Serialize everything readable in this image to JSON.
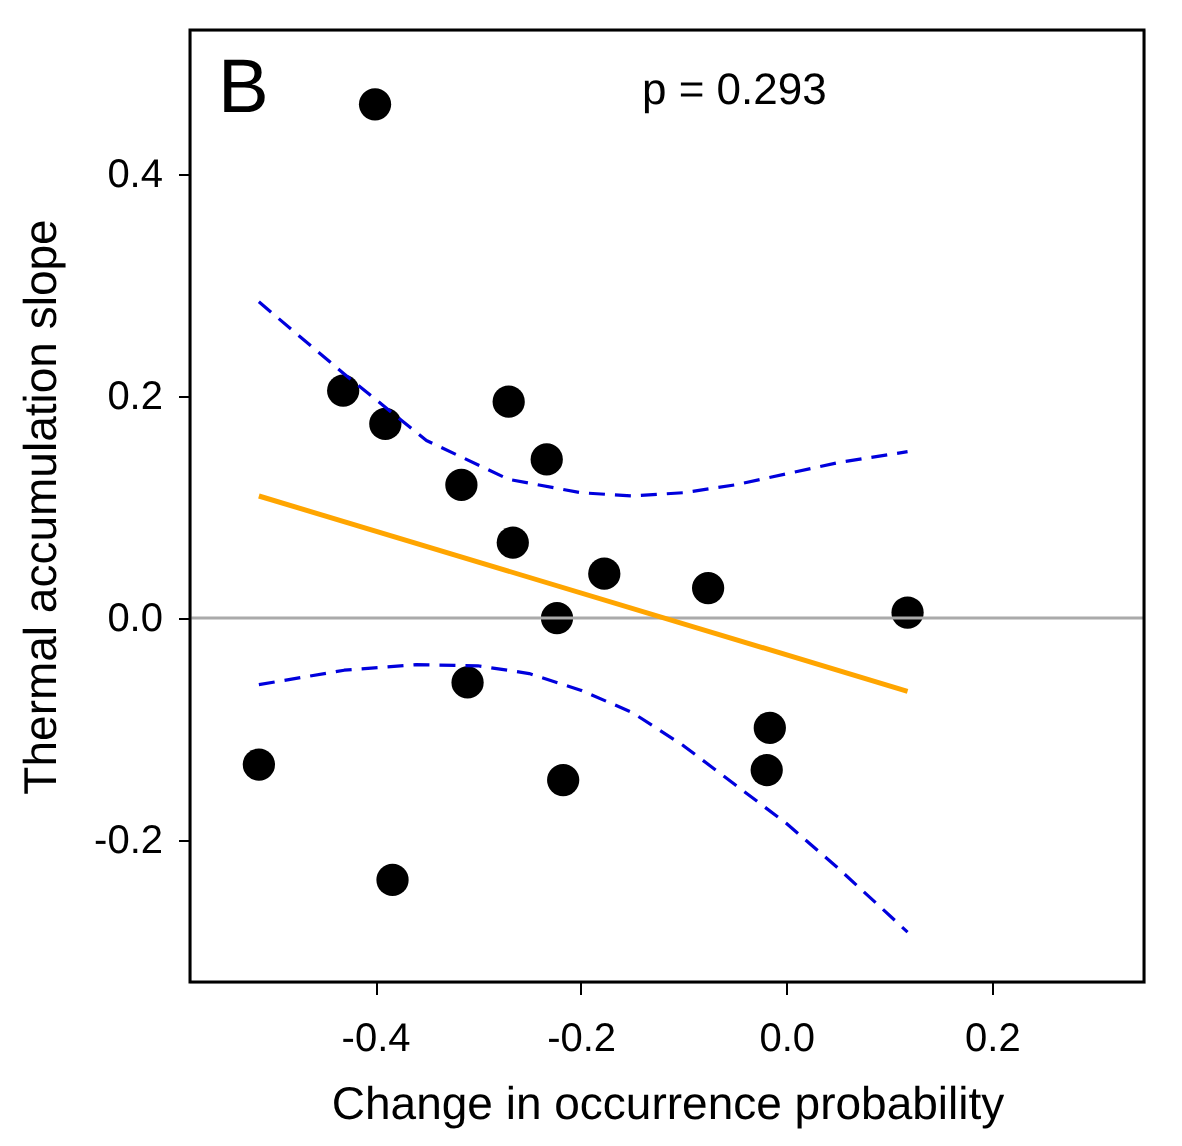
{
  "chart_data": {
    "type": "scatter",
    "xlabel": "Change in occurrence probability",
    "ylabel": "Thermal accumulation slope",
    "annotations": [
      "B",
      "p = 0.293"
    ],
    "xlim": [
      -0.58,
      0.348
    ],
    "ylim": [
      -0.328,
      0.53
    ],
    "xticks": [
      {
        "value": -0.4,
        "label": "-0.4"
      },
      {
        "value": -0.2,
        "label": "-0.2"
      },
      {
        "value": 0,
        "label": "0.0"
      },
      {
        "value": 0.2,
        "label": "0.2"
      }
    ],
    "yticks": [
      {
        "value": -0.2,
        "label": "-0.2"
      },
      {
        "value": 0,
        "label": "0.0"
      },
      {
        "value": 0.2,
        "label": "0.2"
      },
      {
        "value": 0.4,
        "label": "0.4"
      }
    ],
    "grid": false,
    "marker": "circle",
    "ref_lines": [
      {
        "axis": "y",
        "value": 0,
        "color": "#aaaaaa"
      }
    ],
    "series": [
      {
        "color": "#000000",
        "x": [
          -0.4,
          -0.431,
          -0.39,
          -0.27,
          -0.316,
          -0.233,
          -0.266,
          -0.177,
          -0.076,
          -0.223,
          0.118,
          -0.31,
          -0.513,
          -0.383,
          -0.217,
          -0.016,
          -0.019
        ],
        "values": [
          0.463,
          0.205,
          0.175,
          0.195,
          0.12,
          0.143,
          0.068,
          0.04,
          0.027,
          0.0,
          0.005,
          -0.058,
          -0.132,
          -0.236,
          -0.146,
          -0.099,
          -0.137
        ]
      },
      {
        "type": "line",
        "color": "#ffa500",
        "line_style": "solid",
        "marker": "none",
        "x": [
          -0.513,
          0.118
        ],
        "values": [
          0.11,
          -0.066
        ]
      },
      {
        "type": "line",
        "color": "#0000dd",
        "line_style": "dashed",
        "marker": "none",
        "x": [
          -0.513,
          -0.43,
          -0.35,
          -0.27,
          -0.2,
          -0.15,
          -0.1,
          -0.05,
          0.0,
          0.05,
          0.118
        ],
        "values": [
          0.285,
          0.22,
          0.16,
          0.125,
          0.113,
          0.11,
          0.113,
          0.12,
          0.13,
          0.14,
          0.15
        ]
      },
      {
        "type": "line",
        "color": "#0000dd",
        "line_style": "dashed",
        "marker": "none",
        "x": [
          -0.513,
          -0.43,
          -0.36,
          -0.3,
          -0.25,
          -0.2,
          -0.15,
          -0.1,
          -0.05,
          0.0,
          0.05,
          0.118
        ],
        "values": [
          -0.06,
          -0.047,
          -0.042,
          -0.043,
          -0.05,
          -0.065,
          -0.085,
          -0.115,
          -0.15,
          -0.185,
          -0.225,
          -0.283
        ]
      }
    ]
  }
}
